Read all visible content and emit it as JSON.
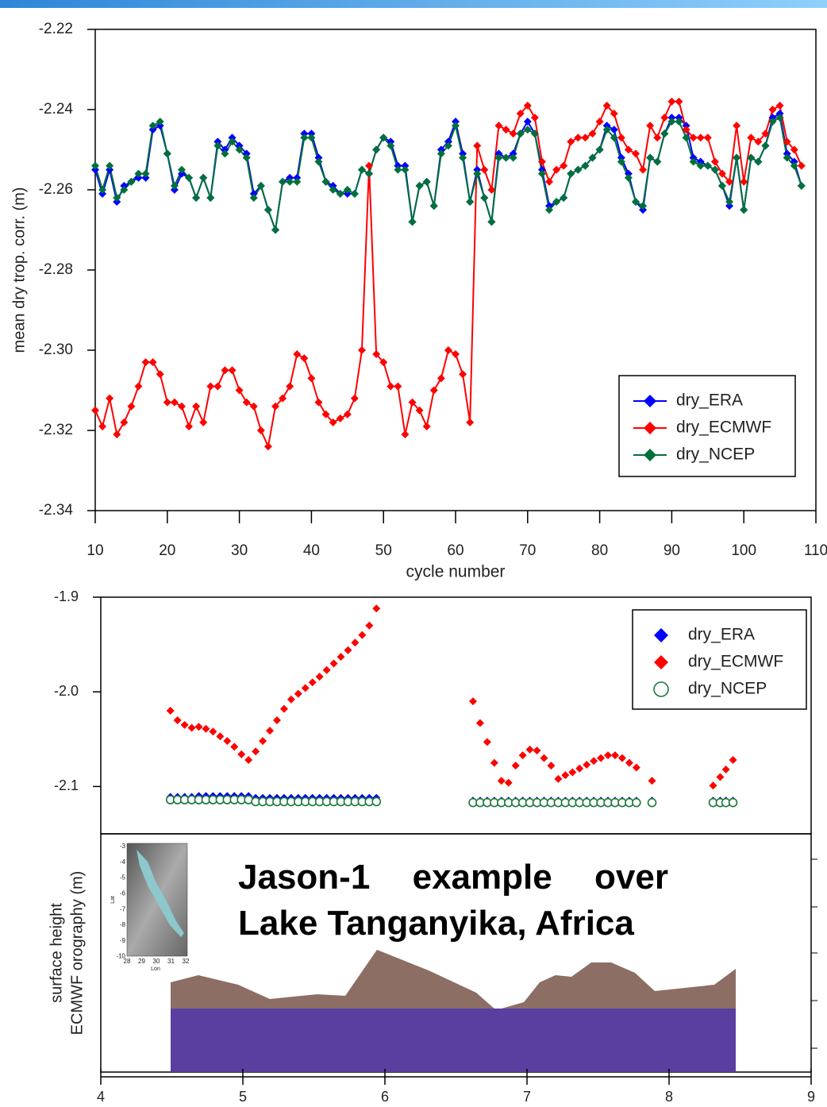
{
  "chart_data": [
    {
      "type": "line",
      "ylabel": "mean dry trop. corr. (m)",
      "xlabel": "cycle number",
      "x": [
        10,
        11,
        12,
        13,
        14,
        15,
        16,
        17,
        18,
        19,
        20,
        21,
        22,
        23,
        24,
        25,
        26,
        27,
        28,
        29,
        30,
        31,
        32,
        33,
        34,
        35,
        36,
        37,
        38,
        39,
        40,
        41,
        42,
        43,
        44,
        45,
        46,
        47,
        48,
        49,
        50,
        51,
        52,
        53,
        54,
        55,
        56,
        57,
        58,
        59,
        60,
        61,
        62,
        63,
        64,
        65,
        66,
        67,
        68,
        69,
        70,
        71,
        72,
        73,
        74,
        75,
        76,
        77,
        78,
        79,
        80,
        81,
        82,
        83,
        84,
        85,
        86,
        87,
        88,
        89,
        90,
        91,
        92,
        93,
        94,
        95,
        96,
        97,
        98,
        99,
        100,
        101,
        102,
        103,
        104,
        105,
        106,
        107,
        108
      ],
      "series": [
        {
          "name": "dry_ERA",
          "color": "#0000ff",
          "values": [
            -2.255,
            -2.261,
            -2.255,
            -2.263,
            -2.259,
            -2.258,
            -2.257,
            -2.257,
            -2.245,
            -2.244,
            -2.251,
            -2.26,
            -2.256,
            -2.257,
            -2.262,
            -2.257,
            -2.262,
            -2.248,
            -2.25,
            -2.247,
            -2.249,
            -2.251,
            -2.261,
            -2.259,
            -2.265,
            -2.27,
            -2.258,
            -2.257,
            -2.257,
            -2.246,
            -2.246,
            -2.252,
            -2.258,
            -2.259,
            -2.261,
            -2.261,
            -2.261,
            -2.255,
            -2.256,
            -2.25,
            -2.247,
            -2.248,
            -2.254,
            -2.254,
            -2.268,
            -2.259,
            -2.258,
            -2.264,
            -2.25,
            -2.248,
            -2.243,
            -2.251,
            -2.263,
            -2.255,
            -2.262,
            -2.268,
            -2.251,
            -2.252,
            -2.251,
            -2.246,
            -2.243,
            -2.246,
            -2.255,
            -2.264,
            -2.263,
            -2.262,
            -2.256,
            -2.255,
            -2.254,
            -2.252,
            -2.25,
            -2.244,
            -2.245,
            -2.252,
            -2.256,
            -2.263,
            -2.265,
            -2.252,
            -2.253,
            -2.246,
            -2.242,
            -2.242,
            -2.244,
            -2.252,
            -2.253,
            -2.254,
            -2.255,
            -2.259,
            -2.264,
            -2.252,
            -2.265,
            -2.252,
            -2.253,
            -2.249,
            -2.242,
            -2.241,
            -2.251,
            -2.253,
            -2.259
          ]
        },
        {
          "name": "dry_ECMWF",
          "color": "#ff0000",
          "values": [
            -2.315,
            -2.319,
            -2.312,
            -2.321,
            -2.318,
            -2.314,
            -2.309,
            -2.303,
            -2.303,
            -2.306,
            -2.313,
            -2.313,
            -2.314,
            -2.319,
            -2.314,
            -2.318,
            -2.309,
            -2.309,
            -2.305,
            -2.305,
            -2.31,
            -2.313,
            -2.314,
            -2.32,
            -2.324,
            -2.314,
            -2.312,
            -2.309,
            -2.301,
            -2.302,
            -2.307,
            -2.313,
            -2.316,
            -2.318,
            -2.317,
            -2.316,
            -2.312,
            -2.3,
            -2.254,
            -2.301,
            -2.303,
            -2.309,
            -2.309,
            -2.321,
            -2.313,
            -2.315,
            -2.319,
            -2.31,
            -2.307,
            -2.3,
            -2.301,
            -2.306,
            -2.318,
            -2.249,
            -2.255,
            -2.26,
            -2.244,
            -2.245,
            -2.246,
            -2.241,
            -2.239,
            -2.242,
            -2.253,
            -2.258,
            -2.255,
            -2.254,
            -2.248,
            -2.247,
            -2.247,
            -2.246,
            -2.243,
            -2.239,
            -2.241,
            -2.247,
            -2.25,
            -2.251,
            -2.255,
            -2.244,
            -2.247,
            -2.242,
            -2.238,
            -2.238,
            -2.245,
            -2.247,
            -2.247,
            -2.247,
            -2.253,
            -2.256,
            -2.258,
            -2.244,
            -2.258,
            -2.247,
            -2.248,
            -2.246,
            -2.24,
            -2.239,
            -2.248,
            -2.25,
            -2.254
          ]
        },
        {
          "name": "dry_NCEP",
          "color": "#00703a",
          "values": [
            -2.254,
            -2.26,
            -2.254,
            -2.262,
            -2.26,
            -2.258,
            -2.256,
            -2.256,
            -2.244,
            -2.243,
            -2.251,
            -2.259,
            -2.255,
            -2.257,
            -2.262,
            -2.257,
            -2.262,
            -2.249,
            -2.251,
            -2.248,
            -2.25,
            -2.252,
            -2.262,
            -2.259,
            -2.265,
            -2.27,
            -2.258,
            -2.258,
            -2.258,
            -2.247,
            -2.247,
            -2.253,
            -2.258,
            -2.26,
            -2.261,
            -2.26,
            -2.261,
            -2.255,
            -2.256,
            -2.25,
            -2.247,
            -2.249,
            -2.255,
            -2.255,
            -2.268,
            -2.259,
            -2.258,
            -2.264,
            -2.251,
            -2.249,
            -2.244,
            -2.252,
            -2.263,
            -2.256,
            -2.262,
            -2.268,
            -2.252,
            -2.252,
            -2.252,
            -2.246,
            -2.245,
            -2.246,
            -2.256,
            -2.265,
            -2.263,
            -2.262,
            -2.256,
            -2.255,
            -2.254,
            -2.252,
            -2.25,
            -2.245,
            -2.247,
            -2.253,
            -2.257,
            -2.263,
            -2.264,
            -2.252,
            -2.253,
            -2.246,
            -2.243,
            -2.243,
            -2.247,
            -2.253,
            -2.254,
            -2.254,
            -2.255,
            -2.259,
            -2.263,
            -2.252,
            -2.265,
            -2.252,
            -2.253,
            -2.249,
            -2.243,
            -2.242,
            -2.252,
            -2.254,
            -2.259
          ]
        }
      ],
      "xlim": [
        10,
        110
      ],
      "xticks": [
        10,
        20,
        30,
        40,
        50,
        60,
        70,
        80,
        90,
        100,
        110
      ],
      "ylim": [
        -2.34,
        -2.22
      ],
      "yticks": [
        -2.22,
        -2.24,
        -2.26,
        -2.28,
        {
          "value": -2.3,
          "label": "-2.30"
        },
        -2.32,
        -2.34
      ],
      "marker": "diamond",
      "legend": "lower right"
    },
    {
      "type": "scatter",
      "series": [
        {
          "name": "dry_ERA",
          "color": "#0000ff",
          "marker": "diamond",
          "x": [
            4.49,
            4.54,
            4.59,
            4.64,
            4.69,
            4.74,
            4.79,
            4.84,
            4.89,
            4.94,
            4.99,
            5.04,
            5.09,
            5.14,
            5.19,
            5.24,
            5.29,
            5.34,
            5.39,
            5.44,
            5.49,
            5.54,
            5.59,
            5.64,
            5.69,
            5.74,
            5.79,
            5.84,
            5.89,
            5.94,
            6.62,
            6.67,
            6.72,
            6.77,
            6.82,
            6.87,
            6.92,
            6.97,
            7.02,
            7.07,
            7.12,
            7.17,
            7.22,
            7.27,
            7.32,
            7.37,
            7.42,
            7.47,
            7.52,
            7.57,
            7.62,
            7.67,
            7.72,
            7.77,
            7.88,
            8.31,
            8.36,
            8.4,
            8.45
          ],
          "values": [
            -2.111,
            -2.111,
            -2.111,
            -2.111,
            -2.11,
            -2.11,
            -2.11,
            -2.11,
            -2.11,
            -2.11,
            -2.11,
            -2.11,
            -2.112,
            -2.112,
            -2.112,
            -2.112,
            -2.112,
            -2.112,
            -2.112,
            -2.112,
            -2.112,
            -2.112,
            -2.112,
            -2.112,
            -2.112,
            -2.112,
            -2.112,
            -2.112,
            -2.112,
            -2.112,
            -2.115,
            -2.115,
            -2.115,
            -2.115,
            -2.115,
            -2.115,
            -2.115,
            -2.115,
            -2.115,
            -2.115,
            -2.115,
            -2.115,
            -2.115,
            -2.115,
            -2.115,
            -2.115,
            -2.115,
            -2.115,
            -2.115,
            -2.115,
            -2.115,
            -2.115,
            -2.115,
            -2.115,
            -2.115,
            -2.115,
            -2.115,
            -2.115,
            -2.115
          ]
        },
        {
          "name": "dry_ECMWF",
          "color": "#ff0000",
          "marker": "diamond",
          "x": [
            4.49,
            4.54,
            4.59,
            4.64,
            4.69,
            4.74,
            4.79,
            4.84,
            4.89,
            4.94,
            4.99,
            5.04,
            5.09,
            5.14,
            5.19,
            5.24,
            5.29,
            5.34,
            5.39,
            5.44,
            5.49,
            5.54,
            5.59,
            5.64,
            5.69,
            5.74,
            5.79,
            5.84,
            5.89,
            5.94,
            6.62,
            6.67,
            6.72,
            6.77,
            6.82,
            6.87,
            6.92,
            6.97,
            7.02,
            7.07,
            7.12,
            7.17,
            7.22,
            7.27,
            7.32,
            7.37,
            7.42,
            7.47,
            7.52,
            7.57,
            7.62,
            7.67,
            7.72,
            7.77,
            7.88,
            8.31,
            8.36,
            8.4,
            8.45
          ],
          "values": [
            -2.02,
            -2.03,
            -2.035,
            -2.038,
            -2.037,
            -2.039,
            -2.042,
            -2.047,
            -2.052,
            -2.058,
            -2.066,
            -2.072,
            -2.063,
            -2.052,
            -2.041,
            -2.03,
            -2.018,
            -2.008,
            -2.002,
            -1.996,
            -1.99,
            -1.984,
            -1.977,
            -1.97,
            -1.963,
            -1.956,
            -1.948,
            -1.94,
            -1.93,
            -1.912,
            -2.01,
            -2.033,
            -2.053,
            -2.075,
            -2.094,
            -2.096,
            -2.078,
            -2.067,
            -2.061,
            -2.062,
            -2.07,
            -2.078,
            -2.092,
            -2.088,
            -2.085,
            -2.081,
            -2.077,
            -2.073,
            -2.07,
            -2.067,
            -2.067,
            -2.07,
            -2.075,
            -2.08,
            -2.094,
            -2.099,
            -2.09,
            -2.082,
            -2.072
          ]
        },
        {
          "name": "dry_NCEP",
          "color": "#1a7a3a",
          "marker": "circle",
          "x": [
            4.49,
            4.54,
            4.59,
            4.64,
            4.69,
            4.74,
            4.79,
            4.84,
            4.89,
            4.94,
            4.99,
            5.04,
            5.09,
            5.14,
            5.19,
            5.24,
            5.29,
            5.34,
            5.39,
            5.44,
            5.49,
            5.54,
            5.59,
            5.64,
            5.69,
            5.74,
            5.79,
            5.84,
            5.89,
            5.94,
            6.62,
            6.67,
            6.72,
            6.77,
            6.82,
            6.87,
            6.92,
            6.97,
            7.02,
            7.07,
            7.12,
            7.17,
            7.22,
            7.27,
            7.32,
            7.37,
            7.42,
            7.47,
            7.52,
            7.57,
            7.62,
            7.67,
            7.72,
            7.77,
            7.88,
            8.31,
            8.36,
            8.4,
            8.45
          ],
          "values": [
            -2.114,
            -2.114,
            -2.114,
            -2.114,
            -2.114,
            -2.114,
            -2.114,
            -2.114,
            -2.114,
            -2.114,
            -2.114,
            -2.114,
            -2.116,
            -2.116,
            -2.116,
            -2.116,
            -2.116,
            -2.116,
            -2.116,
            -2.116,
            -2.116,
            -2.116,
            -2.116,
            -2.116,
            -2.116,
            -2.116,
            -2.116,
            -2.116,
            -2.116,
            -2.116,
            -2.117,
            -2.117,
            -2.117,
            -2.117,
            -2.117,
            -2.117,
            -2.117,
            -2.117,
            -2.117,
            -2.117,
            -2.117,
            -2.117,
            -2.117,
            -2.117,
            -2.117,
            -2.117,
            -2.117,
            -2.117,
            -2.117,
            -2.117,
            -2.117,
            -2.117,
            -2.117,
            -2.117,
            -2.117,
            -2.117,
            -2.117,
            -2.117,
            -2.117
          ]
        }
      ],
      "xlim": [
        4,
        9
      ],
      "xticks": [
        4,
        5,
        6,
        7,
        8,
        9
      ],
      "ylim": [
        -2.15,
        -1.9
      ],
      "yticks": [
        -1.9,
        {
          "value": -2,
          "label": "-2.0"
        },
        -2.1
      ],
      "legend": "upper right",
      "lower_ylabel": [
        "surface height",
        "ECMWF orography (m)"
      ],
      "annotation": "Jason-1 example over Lake Tanganyika, Africa",
      "inset_map": {
        "lat_ticks": [
          -3,
          -4,
          -5,
          -6,
          -7,
          -8,
          -9,
          -10
        ],
        "lon_ticks": [
          28,
          29,
          30,
          31,
          32
        ],
        "xlabel": "Lon",
        "ylabel": "Lat"
      }
    }
  ]
}
